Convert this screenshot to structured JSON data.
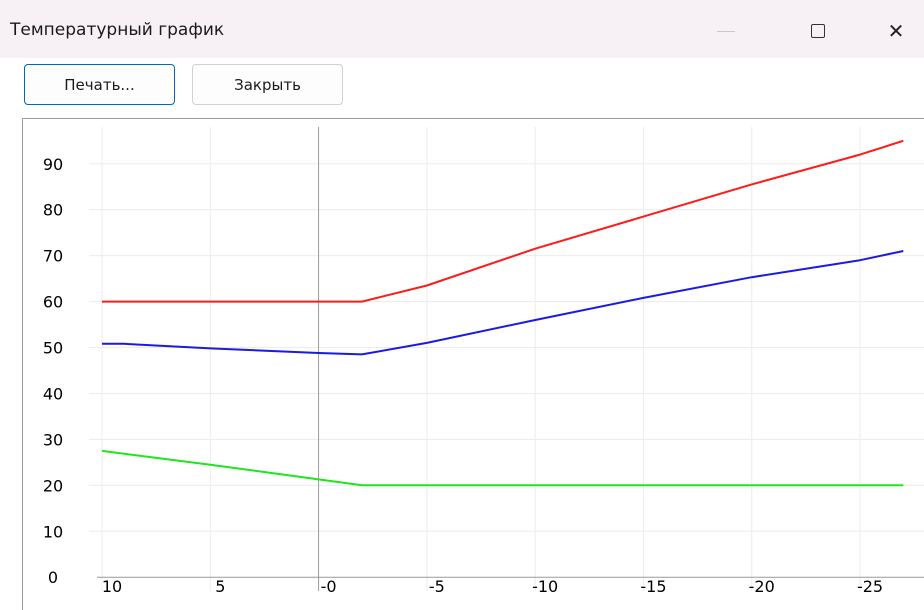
{
  "window": {
    "title": "Температурный график"
  },
  "toolbar": {
    "print_label": "Печать...",
    "close_label": "Закрыть"
  },
  "chart_data": {
    "type": "line",
    "x_ticks": [
      10,
      5,
      0,
      -5,
      -10,
      -15,
      -20,
      -25
    ],
    "x_tick_labels": [
      "10",
      "5",
      "-0",
      "-5",
      "-10",
      "-15",
      "-20",
      "-25"
    ],
    "y_ticks": [
      0,
      10,
      20,
      30,
      40,
      50,
      60,
      70,
      80,
      90
    ],
    "xlim": [
      10.6,
      -28
    ],
    "ylim": [
      -3,
      98
    ],
    "x_reversed": true,
    "grid": true,
    "reference_line_x": 0,
    "series": [
      {
        "color": "#ff1a1a",
        "points": [
          [
            10,
            60
          ],
          [
            5,
            60
          ],
          [
            0,
            60
          ],
          [
            -2,
            60
          ],
          [
            -5,
            63.5
          ],
          [
            -10,
            71.5
          ],
          [
            -15,
            78.5
          ],
          [
            -20,
            85.5
          ],
          [
            -25,
            92
          ],
          [
            -27,
            95
          ]
        ]
      },
      {
        "color": "#1a1ae6",
        "points": [
          [
            10,
            50.8
          ],
          [
            9,
            50.8
          ],
          [
            5,
            49.8
          ],
          [
            0,
            48.8
          ],
          [
            -2,
            48.5
          ],
          [
            -5,
            51
          ],
          [
            -10,
            56
          ],
          [
            -15,
            60.8
          ],
          [
            -20,
            65.3
          ],
          [
            -25,
            69
          ],
          [
            -27,
            71
          ]
        ]
      },
      {
        "color": "#1ee61e",
        "points": [
          [
            10,
            27.5
          ],
          [
            5,
            24.5
          ],
          [
            0,
            21.3
          ],
          [
            -2,
            20
          ],
          [
            -5,
            20
          ],
          [
            -10,
            20
          ],
          [
            -15,
            20
          ],
          [
            -20,
            20
          ],
          [
            -25,
            20
          ],
          [
            -27,
            20
          ]
        ]
      }
    ]
  }
}
